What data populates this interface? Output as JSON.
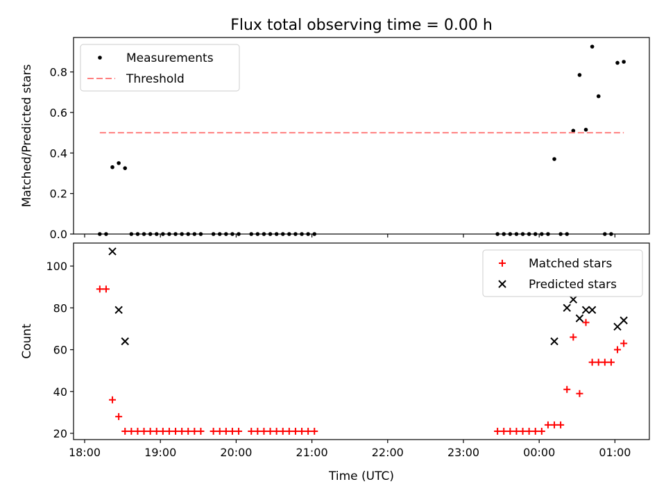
{
  "figure_title": "Flux total observing time = 0.00 h",
  "chart_data": [
    {
      "type": "scatter",
      "ylabel": "Matched/Predicted stars",
      "xlabel": "",
      "ylim": [
        0,
        0.97
      ],
      "yticks": [
        0.0,
        0.2,
        0.4,
        0.6,
        0.8
      ],
      "ytick_labels": [
        "0.0",
        "0.2",
        "0.4",
        "0.6",
        "0.8"
      ],
      "grid": false,
      "legend": "top-left",
      "series": [
        {
          "name": "Measurements",
          "marker": "dot",
          "color": "#000000",
          "x": [
            "18:12",
            "18:17",
            "18:22",
            "18:27",
            "18:32",
            "18:37",
            "18:42",
            "18:47",
            "18:52",
            "18:57",
            "19:02",
            "19:07",
            "19:12",
            "19:17",
            "19:22",
            "19:27",
            "19:32",
            "19:42",
            "19:47",
            "19:52",
            "19:57",
            "20:02",
            "20:12",
            "20:17",
            "20:22",
            "20:27",
            "20:32",
            "20:37",
            "20:42",
            "20:47",
            "20:52",
            "20:57",
            "21:02",
            "23:27",
            "23:32",
            "23:37",
            "23:42",
            "23:47",
            "23:52",
            "23:57",
            "00:02",
            "00:07",
            "00:12",
            "00:17",
            "00:22",
            "00:27",
            "00:32",
            "00:37",
            "00:42",
            "00:47",
            "00:52",
            "00:57",
            "01:02",
            "01:07"
          ],
          "y": [
            0,
            0,
            0.33,
            0.35,
            0.325,
            0,
            0,
            0,
            0,
            0,
            0,
            0,
            0,
            0,
            0,
            0,
            0,
            0,
            0,
            0,
            0,
            0,
            0,
            0,
            0,
            0,
            0,
            0,
            0,
            0,
            0,
            0,
            0,
            0,
            0,
            0,
            0,
            0,
            0,
            0,
            0,
            0,
            0.37,
            0,
            0,
            0.51,
            0.785,
            0.515,
            0.925,
            0.68,
            0,
            0,
            0.845,
            0.85
          ]
        },
        {
          "name": "Threshold",
          "style": "dashed",
          "color": "#ff7f7f",
          "x": [
            "18:12",
            "01:07"
          ],
          "y": [
            0.5,
            0.5
          ]
        }
      ]
    },
    {
      "type": "scatter",
      "ylabel": "Count",
      "xlabel": "Time (UTC)",
      "ylim": [
        17,
        111
      ],
      "yticks": [
        20,
        40,
        60,
        80,
        100
      ],
      "ytick_labels": [
        "20",
        "40",
        "60",
        "80",
        "100"
      ],
      "xticks": [
        "18:00",
        "19:00",
        "20:00",
        "21:00",
        "22:00",
        "23:00",
        "00:00",
        "01:00"
      ],
      "grid": false,
      "legend": "top-right",
      "series": [
        {
          "name": "Matched stars",
          "marker": "plus",
          "color": "#ff0000",
          "x": [
            "18:12",
            "18:17",
            "18:22",
            "18:27",
            "18:32",
            "18:37",
            "18:42",
            "18:47",
            "18:52",
            "18:57",
            "19:02",
            "19:07",
            "19:12",
            "19:17",
            "19:22",
            "19:27",
            "19:32",
            "19:42",
            "19:47",
            "19:52",
            "19:57",
            "20:02",
            "20:12",
            "20:17",
            "20:22",
            "20:27",
            "20:32",
            "20:37",
            "20:42",
            "20:47",
            "20:52",
            "20:57",
            "21:02",
            "23:27",
            "23:32",
            "23:37",
            "23:42",
            "23:47",
            "23:52",
            "23:57",
            "00:02",
            "00:07",
            "00:12",
            "00:17",
            "00:22",
            "00:27",
            "00:32",
            "00:37",
            "00:42",
            "00:47",
            "00:52",
            "00:57",
            "01:02",
            "01:07"
          ],
          "y": [
            89,
            89,
            36,
            28,
            21,
            21,
            21,
            21,
            21,
            21,
            21,
            21,
            21,
            21,
            21,
            21,
            21,
            21,
            21,
            21,
            21,
            21,
            21,
            21,
            21,
            21,
            21,
            21,
            21,
            21,
            21,
            21,
            21,
            21,
            21,
            21,
            21,
            21,
            21,
            21,
            21,
            24,
            24,
            24,
            41,
            66,
            39,
            73,
            54,
            54,
            54,
            54,
            60,
            63
          ]
        },
        {
          "name": "Predicted stars",
          "marker": "x",
          "color": "#000000",
          "x": [
            "18:22",
            "18:27",
            "18:32",
            "00:12",
            "00:22",
            "00:27",
            "00:32",
            "00:37",
            "00:42",
            "01:02",
            "01:07"
          ],
          "y": [
            107,
            79,
            64,
            64,
            80,
            84,
            75,
            79,
            79,
            71,
            74
          ]
        }
      ]
    }
  ]
}
